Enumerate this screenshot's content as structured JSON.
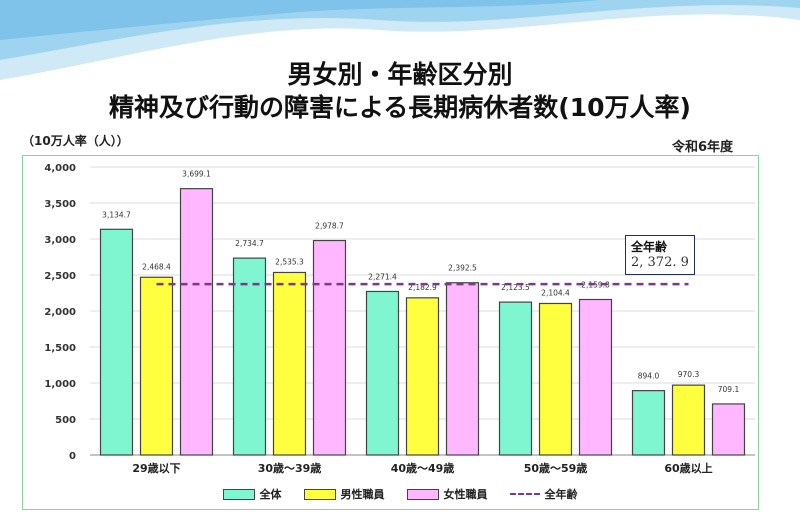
{
  "title_line1": "男女別・年齢区分別",
  "title_line2": "精神及び行動の障害による長期病休者数(10万人率)",
  "unit_label": "（10万人率（人））",
  "year_label": "令和6年度",
  "chart_data": {
    "type": "bar",
    "categories": [
      "29歳以下",
      "30歳～39歳",
      "40歳～49歳",
      "50歳～59歳",
      "60歳以上"
    ],
    "series": [
      {
        "name": "全体",
        "color": "#7ff5d0",
        "values": [
          3134.7,
          2734.7,
          2271.4,
          2123.5,
          894.0
        ],
        "labels": [
          "3,134.7",
          "2,734.7",
          "2,271.4",
          "2,123.5",
          "894.0"
        ]
      },
      {
        "name": "男性職員",
        "color": "#ffff40",
        "values": [
          2468.4,
          2535.3,
          2182.9,
          2104.4,
          970.3
        ],
        "labels": [
          "2,468.4",
          "2,535.3",
          "2,182.9",
          "2,104.4",
          "970.3"
        ]
      },
      {
        "name": "女性職員",
        "color": "#ffb8ff",
        "values": [
          3699.1,
          2978.7,
          2392.5,
          2159.8,
          709.1
        ],
        "labels": [
          "3,699.1",
          "2,978.7",
          "2,392.5",
          "2,159.8",
          "709.1"
        ]
      }
    ],
    "reference_line": {
      "name": "全年齢",
      "value": 2372.9,
      "label": "2, 372. 9",
      "color": "#7a3a8c",
      "style": "dashed"
    },
    "ylim": [
      0,
      4000
    ],
    "yticks": [
      0,
      500,
      1000,
      1500,
      2000,
      2500,
      3000,
      3500,
      4000
    ],
    "ytick_labels": [
      "0",
      "500",
      "1,000",
      "1,500",
      "2,000",
      "2,500",
      "3,000",
      "3,500",
      "4,000"
    ],
    "grid": true,
    "legend_position": "bottom"
  }
}
